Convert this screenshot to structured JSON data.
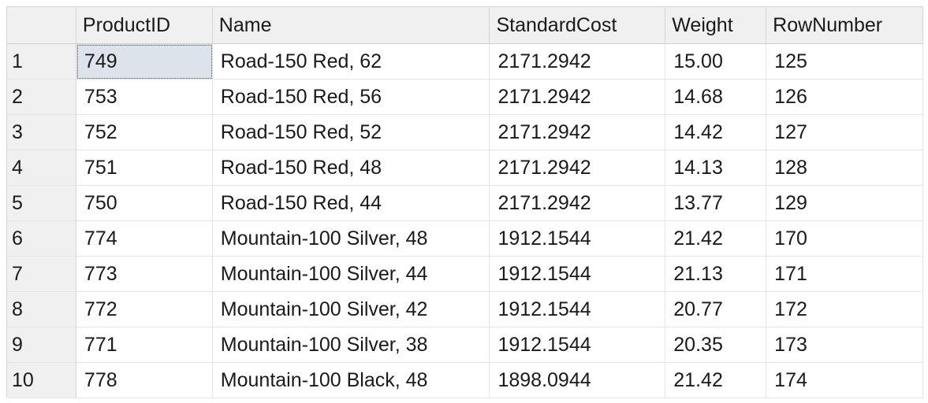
{
  "grid": {
    "columns": [
      "",
      "ProductID",
      "Name",
      "StandardCost",
      "Weight",
      "RowNumber"
    ],
    "rows": [
      {
        "num": "1",
        "id": "749",
        "name": "Road-150 Red, 62",
        "cost": "2171.2942",
        "weight": "15.00",
        "rownumber": "125"
      },
      {
        "num": "2",
        "id": "753",
        "name": "Road-150 Red, 56",
        "cost": "2171.2942",
        "weight": "14.68",
        "rownumber": "126"
      },
      {
        "num": "3",
        "id": "752",
        "name": "Road-150 Red, 52",
        "cost": "2171.2942",
        "weight": "14.42",
        "rownumber": "127"
      },
      {
        "num": "4",
        "id": "751",
        "name": "Road-150 Red, 48",
        "cost": "2171.2942",
        "weight": "14.13",
        "rownumber": "128"
      },
      {
        "num": "5",
        "id": "750",
        "name": "Road-150 Red, 44",
        "cost": "2171.2942",
        "weight": "13.77",
        "rownumber": "129"
      },
      {
        "num": "6",
        "id": "774",
        "name": "Mountain-100 Silver, 48",
        "cost": "1912.1544",
        "weight": "21.42",
        "rownumber": "170"
      },
      {
        "num": "7",
        "id": "773",
        "name": "Mountain-100 Silver, 44",
        "cost": "1912.1544",
        "weight": "21.13",
        "rownumber": "171"
      },
      {
        "num": "8",
        "id": "772",
        "name": "Mountain-100 Silver, 42",
        "cost": "1912.1544",
        "weight": "20.77",
        "rownumber": "172"
      },
      {
        "num": "9",
        "id": "771",
        "name": "Mountain-100 Silver, 38",
        "cost": "1912.1544",
        "weight": "20.35",
        "rownumber": "173"
      },
      {
        "num": "10",
        "id": "778",
        "name": "Mountain-100 Black, 48",
        "cost": "1898.0944",
        "weight": "21.42",
        "rownumber": "174"
      }
    ],
    "selected_cell": {
      "row": 1,
      "column": "ProductID"
    }
  }
}
